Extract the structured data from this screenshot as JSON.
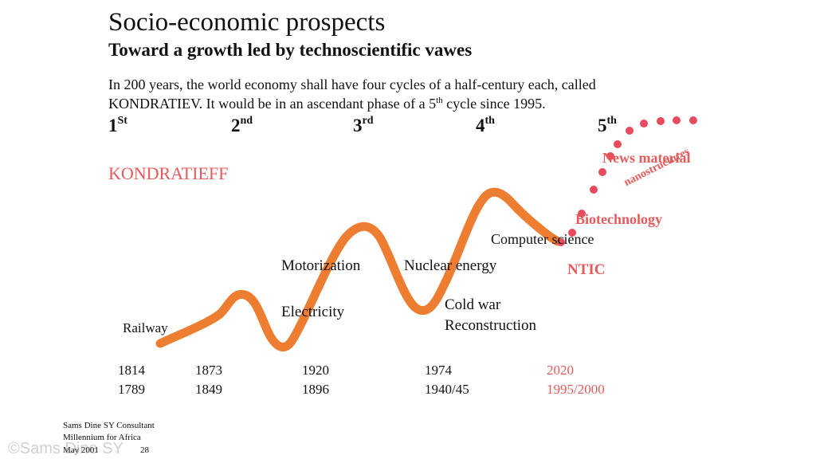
{
  "title": "Socio-economic prospects",
  "subtitle": "Toward a growth led by technoscientific vawes",
  "intro": {
    "line1": "In 200 years, the world economy shall have four cycles of a half-century each, called",
    "line2_pre": "KONDRATIEV.  It would be in an ascendant phase of a 5",
    "line2_sup": "th",
    "line2_post": "  cycle since 1995."
  },
  "cycles": [
    {
      "num": "1",
      "sup": "St"
    },
    {
      "num": "2",
      "sup": "nd"
    },
    {
      "num": "3",
      "sup": "rd"
    },
    {
      "num": "4",
      "sup": "th"
    },
    {
      "num": "5",
      "sup": "th"
    }
  ],
  "heading_kondratieff": "KONDRATIEFF",
  "labels": {
    "railway": "Railway",
    "motorization": "Motorization",
    "electricity": "Electricity",
    "nuclear_energy": "Nuclear energy",
    "cold_war": "Cold war",
    "reconstruction": "Reconstruction",
    "computer_science": "Computer science",
    "ntic": "NTIC",
    "biotechnology": "Biotechnology",
    "nanostructures": "nanostructures",
    "news_material": "News material"
  },
  "years": [
    {
      "top": "1814",
      "bottom": "1789"
    },
    {
      "top": "1873",
      "bottom": "1849"
    },
    {
      "top": "1920",
      "bottom": "1896"
    },
    {
      "top": "1974",
      "bottom": "1940/45"
    },
    {
      "top": "2020",
      "bottom": "1995/2000"
    }
  ],
  "footer": {
    "line1": "Sams Dine  SY Consultant",
    "line2": "Millennium  for Africa",
    "line3_date": "May 2001",
    "line3_page": "28"
  },
  "watermark": "©Sams Dine SY",
  "colors": {
    "curve": "#ed7d31",
    "accent_red": "#e55a5a",
    "dots": "#e84a5f"
  }
}
